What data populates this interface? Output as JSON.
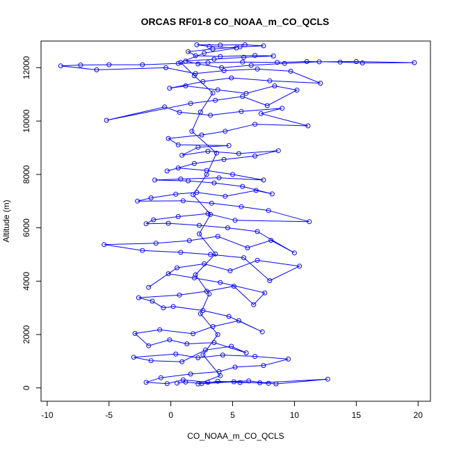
{
  "chart_data": {
    "type": "line",
    "title": "ORCAS RF01-8 CO_NOAA_m_CO_QCLS",
    "xlabel": "CO_NOAA_m_CO_QCLS",
    "ylabel": "Altitude (m)",
    "xlim": [
      -10.5,
      21
    ],
    "ylim": [
      -500,
      13000
    ],
    "x_ticks": [
      -10,
      -5,
      0,
      5,
      10,
      15,
      20
    ],
    "y_ticks": [
      0,
      2000,
      4000,
      6000,
      8000,
      10000,
      12000
    ],
    "x_tick_labels": [
      "-10",
      "-5",
      "0",
      "5",
      "10",
      "15",
      "20"
    ],
    "y_tick_labels": [
      "0",
      "2000",
      "4000",
      "6000",
      "8000",
      "10000",
      "12000"
    ],
    "marker": "open-circle",
    "grid": false,
    "color": "#0000ff",
    "series": [
      {
        "values": [
          [
            0.5,
            180
          ],
          [
            1.2,
            220
          ],
          [
            2.5,
            160
          ],
          [
            3.8,
            250
          ],
          [
            5.6,
            200
          ],
          [
            7.2,
            190
          ],
          [
            12.7,
            330
          ],
          [
            8.5,
            150
          ],
          [
            6.3,
            260
          ],
          [
            3.0,
            210
          ],
          [
            1.0,
            300
          ],
          [
            -0.3,
            160
          ],
          [
            -2.0,
            210
          ],
          [
            -0.8,
            380
          ],
          [
            1.6,
            520
          ],
          [
            3.9,
            610
          ],
          [
            5.2,
            780
          ],
          [
            7.5,
            840
          ],
          [
            9.5,
            1080
          ],
          [
            6.8,
            1180
          ],
          [
            4.2,
            1230
          ],
          [
            2.2,
            1130
          ],
          [
            0.4,
            1270
          ],
          [
            -3.0,
            1150
          ],
          [
            -1.6,
            1020
          ],
          [
            0.9,
            980
          ],
          [
            2.8,
            1420
          ],
          [
            4.9,
            1560
          ],
          [
            6.1,
            1310
          ],
          [
            3.5,
            1700
          ],
          [
            1.3,
            1650
          ],
          [
            -0.1,
            1800
          ],
          [
            -1.8,
            1580
          ],
          [
            -2.9,
            2040
          ],
          [
            -0.9,
            2180
          ],
          [
            1.8,
            2030
          ],
          [
            3.4,
            2300
          ],
          [
            5.5,
            2520
          ],
          [
            7.4,
            2100
          ],
          [
            4.7,
            2680
          ],
          [
            2.6,
            2900
          ],
          [
            0.2,
            3050
          ],
          [
            -0.6,
            3000
          ],
          [
            -1.5,
            3250
          ],
          [
            -2.6,
            3380
          ],
          [
            0.7,
            3480
          ],
          [
            2.9,
            3620
          ],
          [
            5.1,
            3810
          ],
          [
            6.7,
            3120
          ],
          [
            7.6,
            3560
          ],
          [
            4.0,
            3950
          ],
          [
            1.9,
            4120
          ],
          [
            -0.2,
            4280
          ],
          [
            -1.8,
            3770
          ],
          [
            0.5,
            4500
          ],
          [
            2.7,
            4650
          ],
          [
            4.8,
            4390
          ],
          [
            7.0,
            4780
          ],
          [
            10.4,
            4560
          ],
          [
            8.0,
            4020
          ],
          [
            5.9,
            4880
          ],
          [
            3.2,
            5000
          ],
          [
            0.8,
            5080
          ],
          [
            -2.3,
            5150
          ],
          [
            -5.4,
            5370
          ],
          [
            -1.2,
            5420
          ],
          [
            1.5,
            5520
          ],
          [
            3.8,
            5680
          ],
          [
            6.2,
            5250
          ],
          [
            8.1,
            5530
          ],
          [
            10.0,
            5060
          ],
          [
            7.0,
            5860
          ],
          [
            4.6,
            6000
          ],
          [
            2.3,
            6090
          ],
          [
            -0.2,
            6170
          ],
          [
            -2.0,
            6150
          ],
          [
            -1.4,
            6300
          ],
          [
            0.6,
            6420
          ],
          [
            3.0,
            6530
          ],
          [
            5.2,
            6280
          ],
          [
            11.2,
            6230
          ],
          [
            7.9,
            6650
          ],
          [
            5.7,
            6790
          ],
          [
            3.3,
            6920
          ],
          [
            1.0,
            7010
          ],
          [
            -2.7,
            7000
          ],
          [
            -1.6,
            7120
          ],
          [
            0.4,
            7260
          ],
          [
            2.1,
            7330
          ],
          [
            4.4,
            7180
          ],
          [
            6.9,
            7400
          ],
          [
            8.2,
            7270
          ],
          [
            5.8,
            7550
          ],
          [
            3.5,
            7680
          ],
          [
            1.4,
            7760
          ],
          [
            -1.3,
            7790
          ],
          [
            0.8,
            7830
          ],
          [
            3.9,
            7870
          ],
          [
            7.5,
            7790
          ],
          [
            5.0,
            8000
          ],
          [
            2.9,
            8150
          ],
          [
            0.6,
            8240
          ],
          [
            -0.3,
            8130
          ],
          [
            1.9,
            8410
          ],
          [
            4.3,
            8560
          ],
          [
            6.8,
            8690
          ],
          [
            8.7,
            8890
          ],
          [
            5.5,
            8780
          ],
          [
            3.0,
            8870
          ],
          [
            0.9,
            8720
          ],
          [
            2.2,
            9020
          ],
          [
            4.7,
            9080
          ],
          [
            0.6,
            9110
          ],
          [
            -0.2,
            9350
          ],
          [
            2.5,
            9480
          ],
          [
            4.4,
            9620
          ],
          [
            6.8,
            9880
          ],
          [
            11.1,
            9820
          ],
          [
            7.3,
            10280
          ],
          [
            9.0,
            10480
          ],
          [
            5.7,
            10360
          ],
          [
            3.2,
            10220
          ],
          [
            0.7,
            10330
          ],
          [
            -0.5,
            10530
          ],
          [
            -5.2,
            10030
          ],
          [
            1.6,
            10660
          ],
          [
            3.6,
            10780
          ],
          [
            5.8,
            10920
          ],
          [
            7.8,
            10580
          ],
          [
            10.2,
            11160
          ],
          [
            8.4,
            11320
          ],
          [
            6.1,
            11040
          ],
          [
            3.8,
            11170
          ],
          [
            1.2,
            11320
          ],
          [
            -0.1,
            11230
          ],
          [
            2.6,
            11480
          ],
          [
            4.9,
            11620
          ],
          [
            8.0,
            11510
          ],
          [
            12.1,
            11420
          ],
          [
            9.7,
            11870
          ],
          [
            7.0,
            11950
          ],
          [
            4.3,
            11890
          ],
          [
            2.0,
            11780
          ],
          [
            -0.4,
            12000
          ],
          [
            -6.0,
            11920
          ],
          [
            -8.9,
            12070
          ],
          [
            -7.3,
            12100
          ],
          [
            -5.0,
            12110
          ],
          [
            -2.3,
            12110
          ],
          [
            0.6,
            12160
          ],
          [
            3.0,
            12190
          ],
          [
            5.8,
            12210
          ],
          [
            8.6,
            12200
          ],
          [
            11.0,
            12230
          ],
          [
            13.7,
            12210
          ],
          [
            15.5,
            12180
          ],
          [
            19.7,
            12190
          ],
          [
            15.0,
            12230
          ],
          [
            12.0,
            12220
          ],
          [
            9.2,
            12160
          ],
          [
            6.5,
            12090
          ],
          [
            4.1,
            12000
          ],
          [
            2.2,
            12140
          ],
          [
            1.2,
            12250
          ],
          [
            3.5,
            12320
          ],
          [
            5.9,
            12390
          ],
          [
            8.3,
            12440
          ],
          [
            6.8,
            12460
          ],
          [
            4.0,
            12420
          ],
          [
            2.0,
            12450
          ],
          [
            1.4,
            12600
          ],
          [
            3.4,
            12700
          ],
          [
            5.6,
            12780
          ],
          [
            7.5,
            12820
          ],
          [
            6.0,
            12860
          ],
          [
            4.0,
            12850
          ],
          [
            2.1,
            12860
          ],
          [
            3.1,
            12800
          ],
          [
            5.3,
            12740
          ],
          [
            2.7,
            12550
          ],
          [
            0.8,
            12200
          ],
          [
            1.9,
            11700
          ],
          [
            3.4,
            11050
          ],
          [
            2.4,
            10340
          ],
          [
            1.7,
            9620
          ],
          [
            3.7,
            8800
          ],
          [
            2.9,
            8000
          ],
          [
            1.8,
            7240
          ],
          [
            3.2,
            6500
          ],
          [
            2.3,
            5770
          ],
          [
            3.6,
            5020
          ],
          [
            2.0,
            4240
          ],
          [
            3.1,
            3520
          ],
          [
            2.4,
            2780
          ],
          [
            3.8,
            2000
          ],
          [
            2.6,
            1240
          ],
          [
            4.0,
            460
          ],
          [
            2.2,
            150
          ],
          [
            5.1,
            230
          ],
          [
            7.9,
            170
          ]
        ]
      }
    ]
  }
}
